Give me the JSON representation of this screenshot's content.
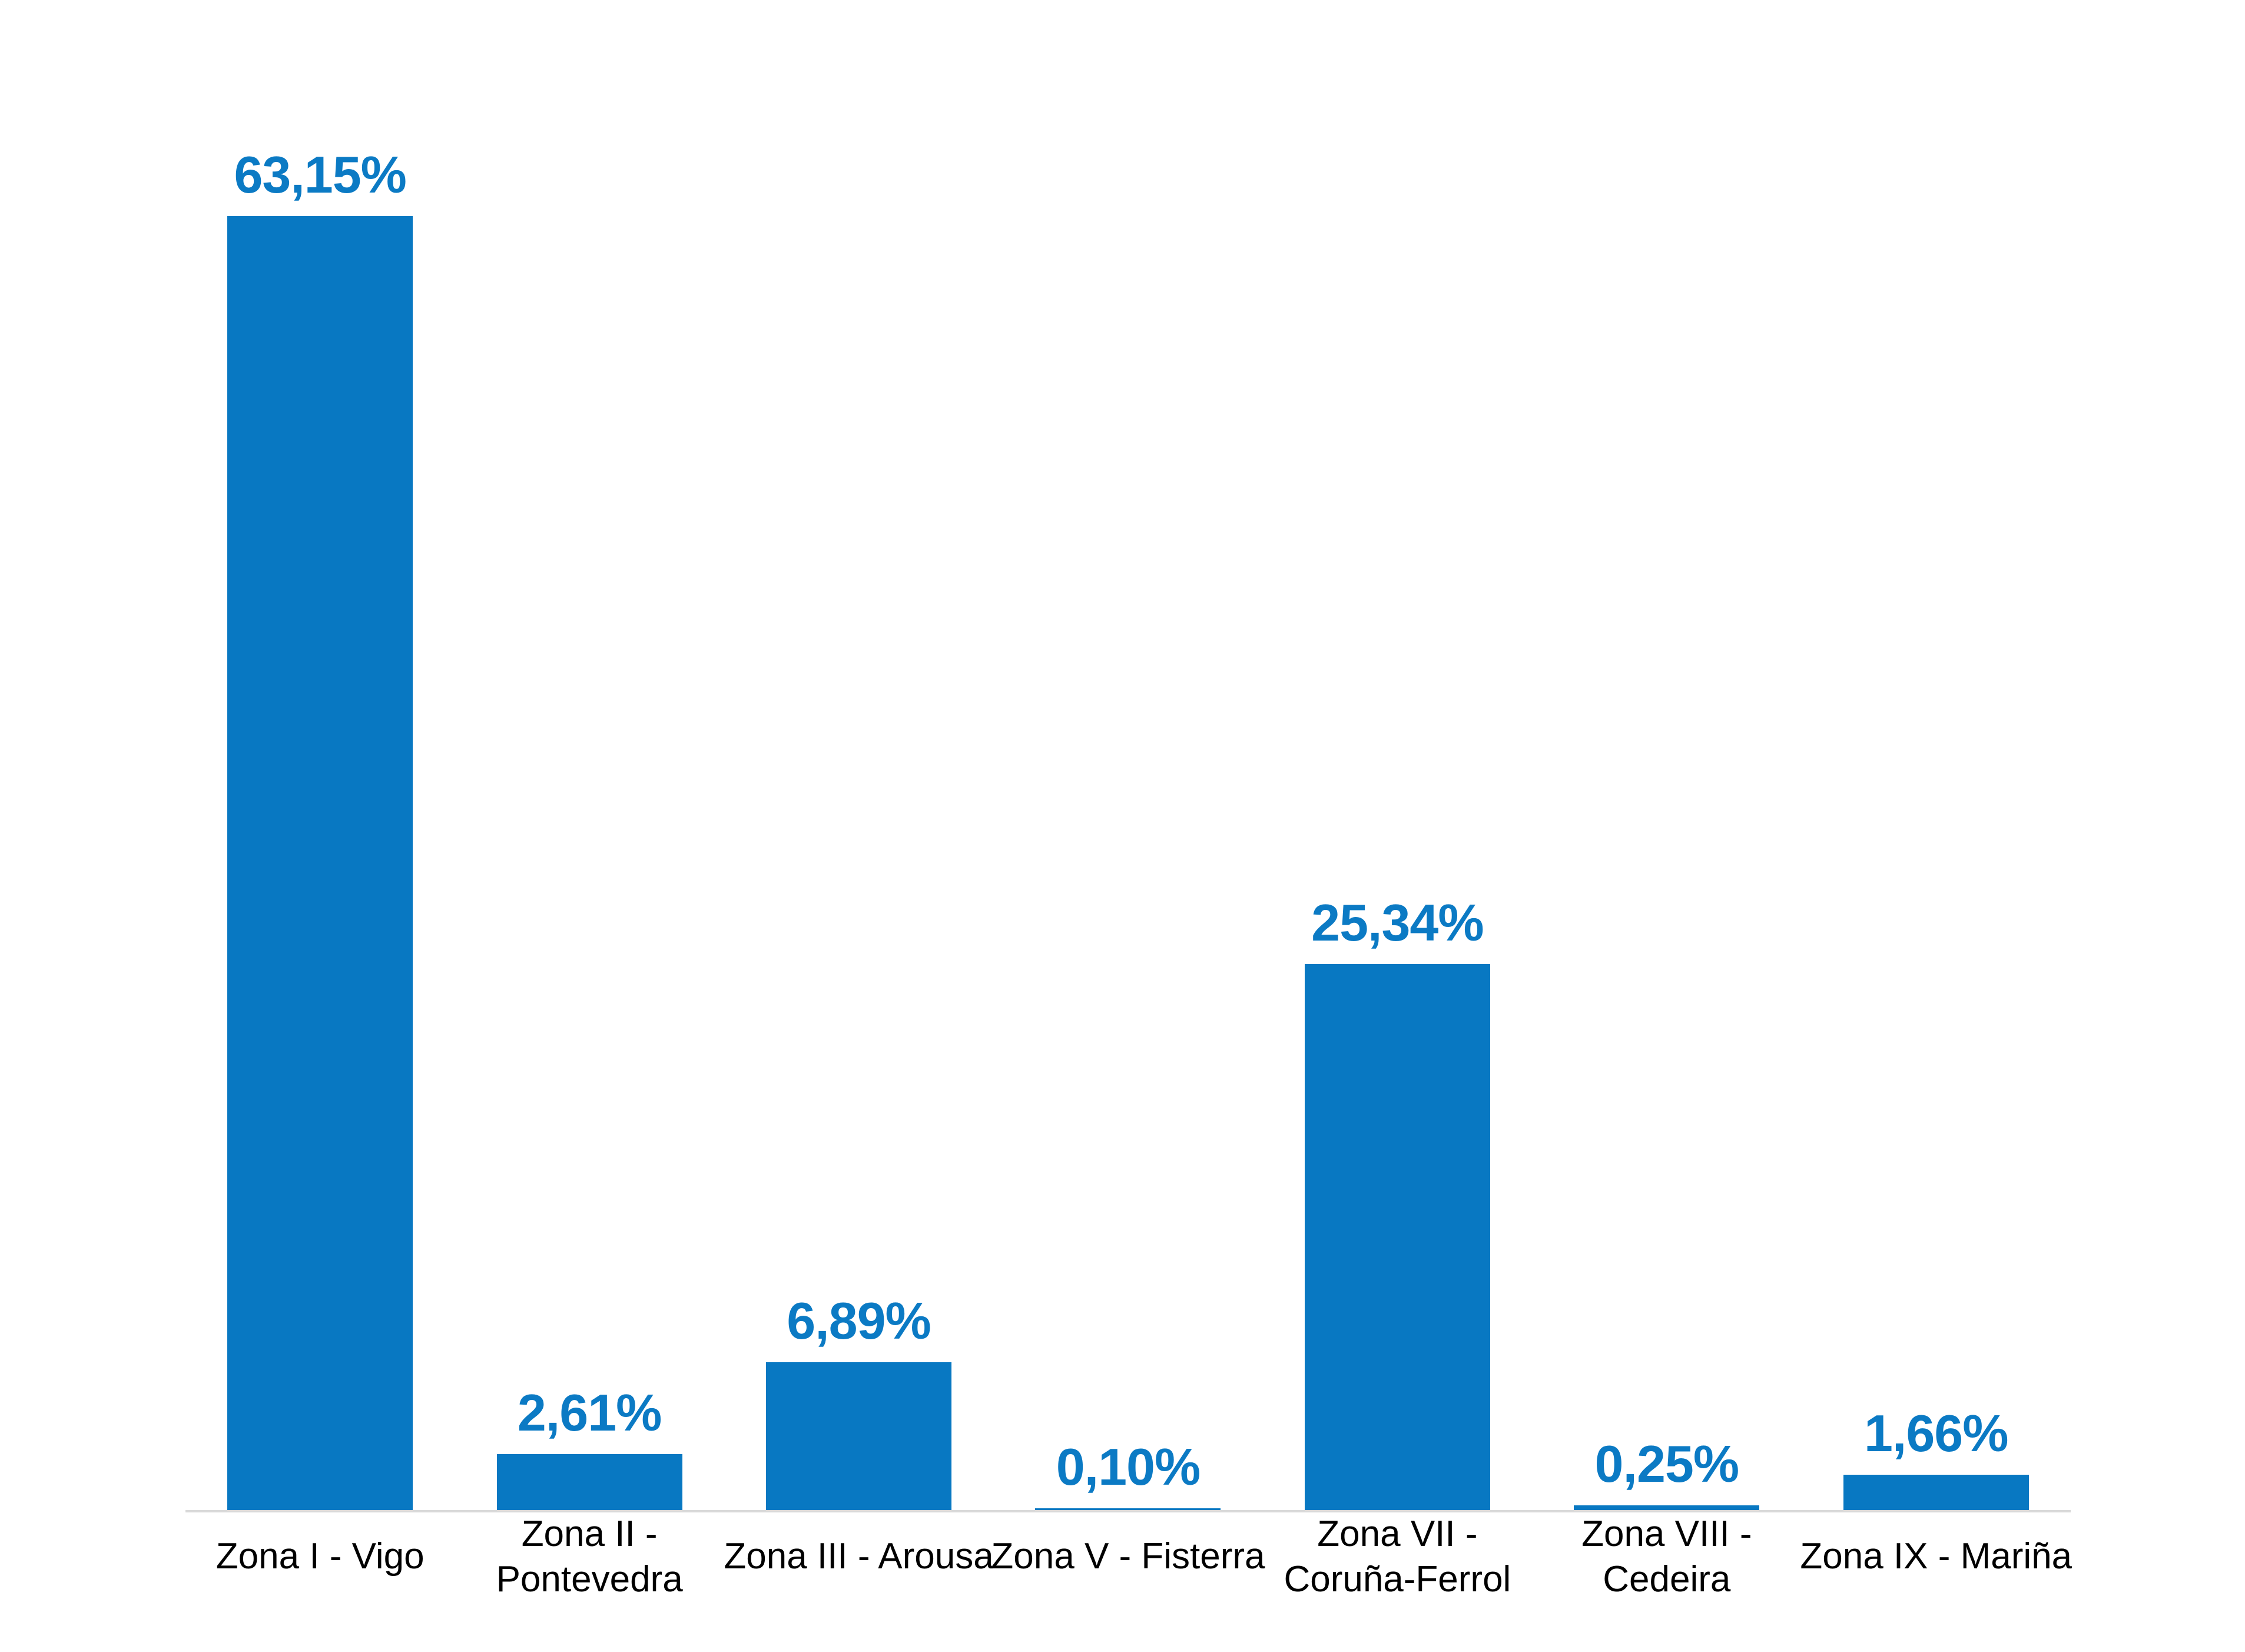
{
  "chart_data": {
    "type": "bar",
    "title": "",
    "xlabel": "",
    "ylabel": "",
    "categories": [
      "Zona I - Vigo",
      "Zona II -\nPontevedra",
      "Zona III - Arousa",
      "Zona V - Fisterra",
      "Zona VII -\nCoruña-Ferrol",
      "Zona VIII -\nCedeira",
      "Zona IX - Mariña"
    ],
    "values": [
      63.15,
      2.61,
      6.89,
      0.1,
      25.34,
      0.25,
      1.66
    ],
    "value_labels": [
      "63,15%",
      "2,61%",
      "6,89%",
      "0,10%",
      "25,34%",
      "0,25%",
      "1,66%"
    ],
    "ylim": [
      0,
      63.15
    ],
    "grid": false,
    "legend": false,
    "axis": "x-baseline-only",
    "bar_color": "#0878c2",
    "value_label_color": "#0b7ac4",
    "category_label_color": "#000000",
    "axis_line_color": "#d9d9d9",
    "background_color": "#ffffff"
  }
}
